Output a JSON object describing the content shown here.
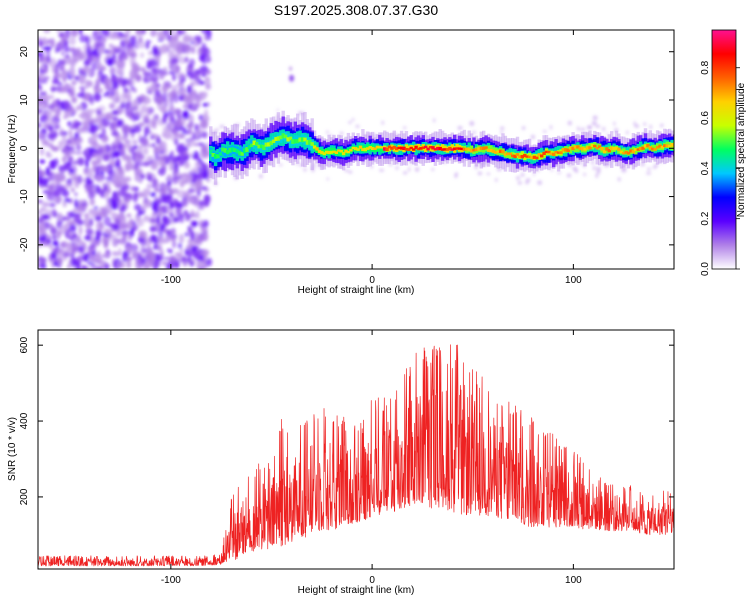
{
  "title": "S197.2025.308.07.37.G30",
  "chart_data": [
    {
      "type": "heatmap",
      "name": "spectrogram",
      "xlabel": "Height of straight line (km)",
      "ylabel": "Frequency (Hz)",
      "xlim": [
        -166,
        150
      ],
      "ylim": [
        -25,
        24.5
      ],
      "x_ticks": [
        -100,
        0,
        100
      ],
      "y_ticks": [
        -20,
        -10,
        0,
        10,
        20
      ],
      "noise_region_x": [
        -166,
        -81
      ],
      "ridge": {
        "x": [
          -81,
          -78,
          -75,
          -70,
          -65,
          -60,
          -55,
          -50,
          -45,
          -40,
          -35,
          -30,
          -25,
          -20,
          -15,
          -10,
          -5,
          0,
          10,
          20,
          30,
          40,
          45,
          50,
          55,
          60,
          65,
          70,
          75,
          80,
          85,
          90,
          95,
          100,
          105,
          110,
          115,
          120,
          125,
          130,
          135,
          140,
          145,
          150
        ],
        "y": [
          -1,
          -2,
          -0.5,
          -0.5,
          -1,
          1,
          0,
          1.5,
          2.5,
          1.5,
          2,
          0.5,
          -1,
          -0.5,
          -1,
          0,
          0,
          0,
          0,
          0,
          0,
          0,
          0,
          -0.5,
          0,
          -0.5,
          -1,
          -1.5,
          -1.5,
          -2,
          -1,
          -1,
          -0.5,
          0,
          0,
          0.5,
          -0.5,
          0,
          -1,
          -0.5,
          0.5,
          0,
          0.5,
          0.5
        ]
      },
      "colorbar": {
        "label": "Normalized spectral amplitude",
        "range": [
          0,
          0.95
        ],
        "ticks": [
          0.0,
          0.2,
          0.4,
          0.6,
          0.8
        ],
        "tick_labels": [
          "0.0",
          "0.2",
          "0.4",
          "0.6",
          "0.8"
        ],
        "colors": [
          "#ffffff",
          "#b080e8",
          "#5a00ff",
          "#0000ff",
          "#00c8ff",
          "#00ff60",
          "#c8ff00",
          "#ffd000",
          "#ff6000",
          "#ff0000",
          "#ff1090"
        ]
      }
    },
    {
      "type": "line",
      "name": "snr",
      "xlabel": "Height of straight line (km)",
      "ylabel": "SNR (10 * v/v)",
      "xlim": [
        -166,
        150
      ],
      "ylim": [
        10,
        640
      ],
      "x_ticks": [
        -100,
        0,
        100
      ],
      "y_ticks": [
        200,
        400,
        600
      ],
      "color": "#ee2222",
      "series": [
        {
          "name": "SNR",
          "envelope_x": [
            -166,
            -140,
            -120,
            -100,
            -90,
            -80,
            -75,
            -70,
            -65,
            -60,
            -55,
            -50,
            -45,
            -40,
            -35,
            -30,
            -25,
            -20,
            -15,
            -10,
            -5,
            0,
            5,
            10,
            15,
            20,
            25,
            30,
            35,
            40,
            45,
            50,
            55,
            60,
            65,
            70,
            75,
            80,
            85,
            90,
            95,
            100,
            105,
            110,
            115,
            120,
            125,
            130,
            135,
            140,
            145,
            150
          ],
          "envelope_low": [
            18,
            18,
            18,
            18,
            18,
            20,
            22,
            30,
            40,
            50,
            60,
            60,
            70,
            80,
            90,
            100,
            110,
            110,
            120,
            130,
            130,
            150,
            150,
            160,
            160,
            170,
            170,
            170,
            170,
            160,
            150,
            150,
            150,
            150,
            140,
            130,
            120,
            120,
            120,
            120,
            120,
            120,
            115,
            115,
            110,
            110,
            110,
            110,
            100,
            100,
            100,
            100
          ],
          "envelope_high": [
            45,
            45,
            45,
            45,
            45,
            45,
            60,
            200,
            240,
            260,
            300,
            300,
            420,
            380,
            390,
            420,
            440,
            430,
            420,
            400,
            400,
            460,
            470,
            490,
            520,
            570,
            610,
            600,
            610,
            600,
            620,
            580,
            520,
            500,
            480,
            450,
            430,
            410,
            380,
            370,
            350,
            330,
            300,
            280,
            250,
            240,
            230,
            230,
            210,
            220,
            220,
            220
          ]
        }
      ]
    }
  ]
}
